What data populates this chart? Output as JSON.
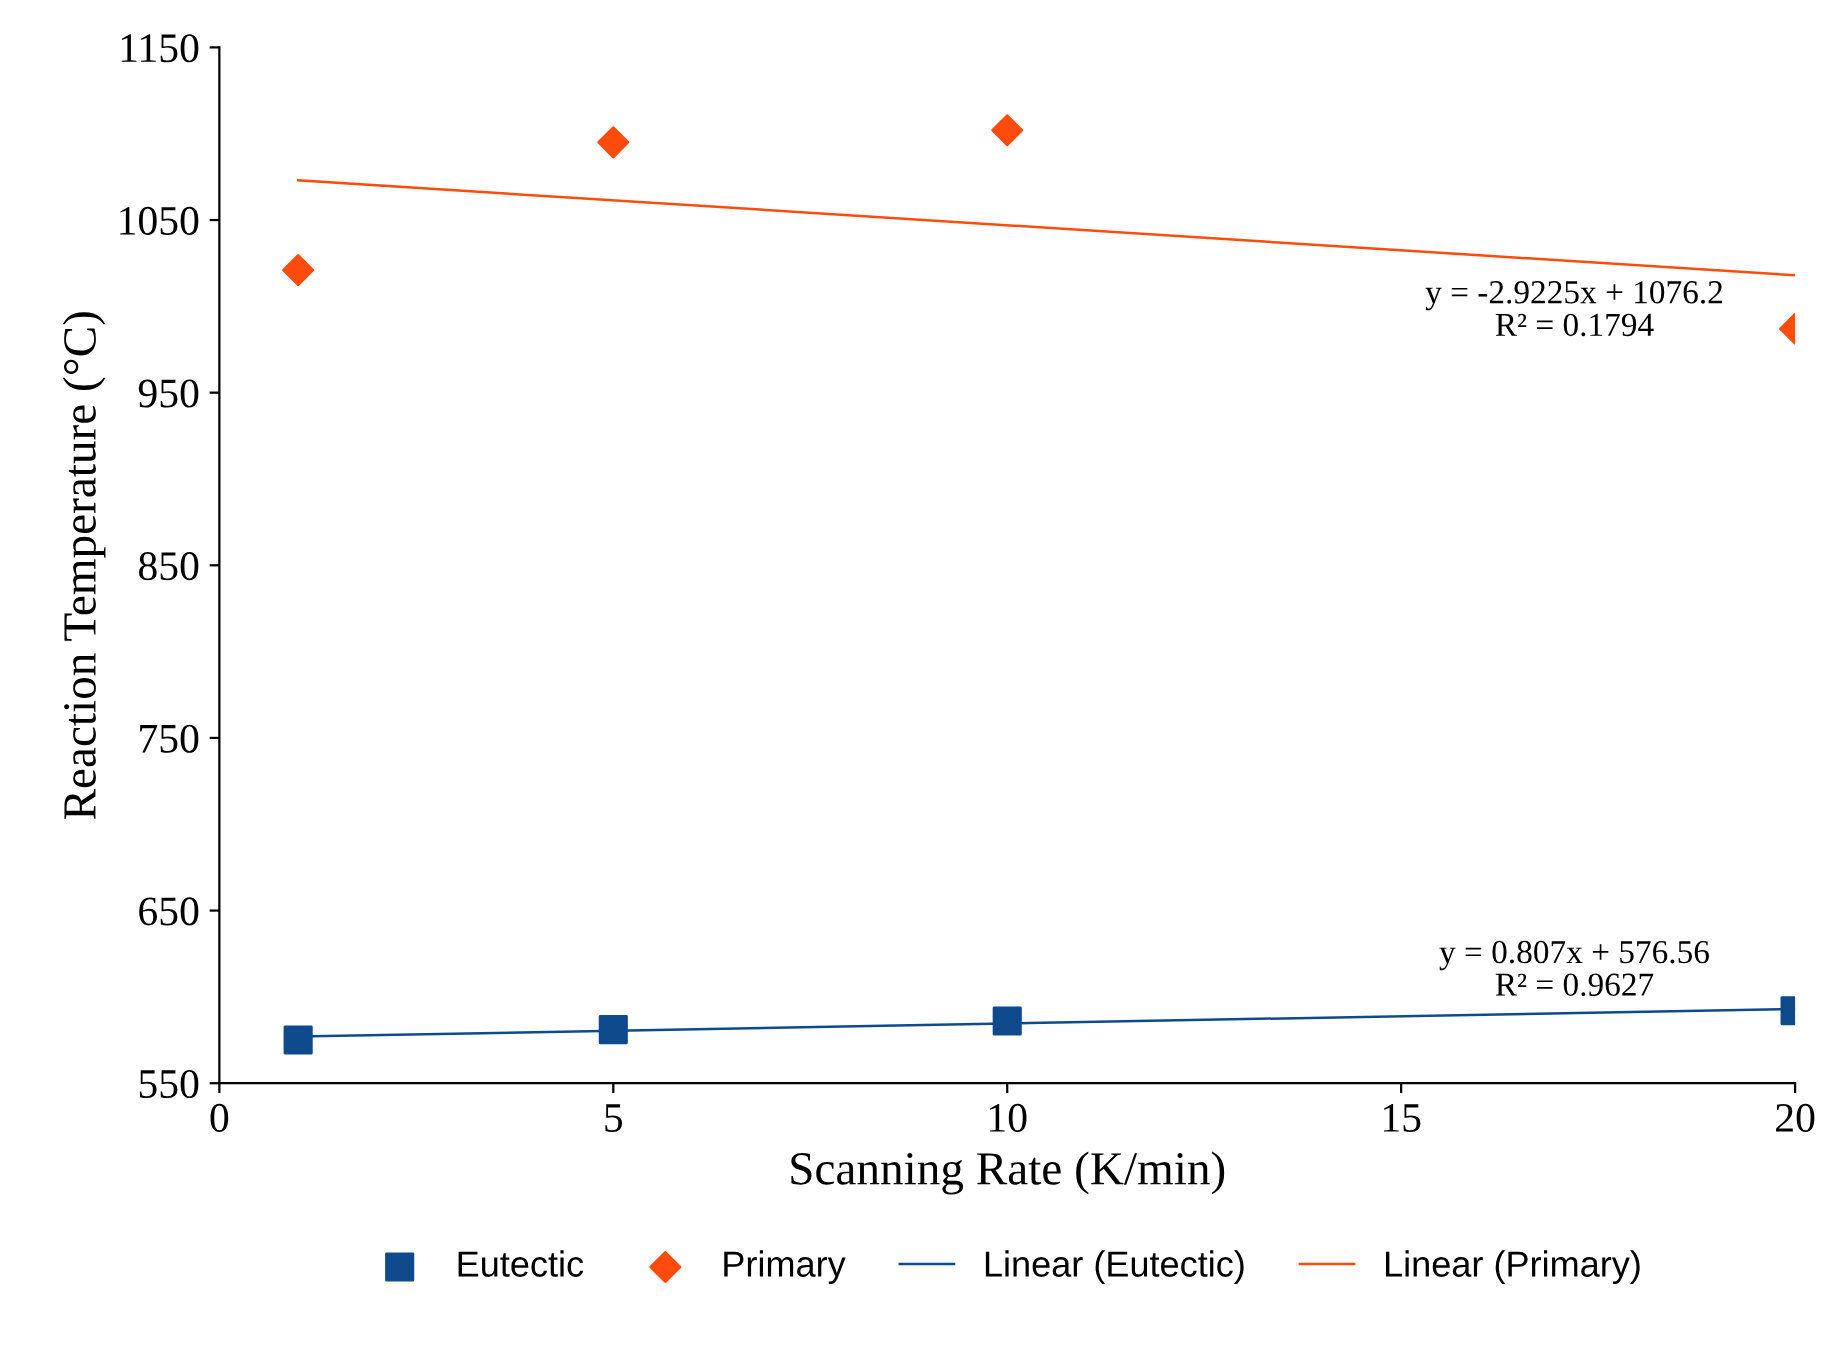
{
  "chart_data": {
    "type": "scatter",
    "xlabel": "Scanning Rate (K/min)",
    "ylabel": "Reaction Temperature (°C)",
    "xlim": [
      0,
      20
    ],
    "xticks": [
      0,
      5,
      10,
      15,
      20
    ],
    "ylim": [
      550,
      1150
    ],
    "yticks": [
      550,
      650,
      750,
      850,
      950,
      1050,
      1150
    ],
    "grid": false,
    "legend": "bottom",
    "series": [
      {
        "name": "Eutectic",
        "type": "scatter",
        "marker": "square",
        "color": "#0e4a8c",
        "x": [
          1,
          5,
          10,
          20
        ],
        "values": [
          575,
          581,
          586,
          592
        ]
      },
      {
        "name": "Primary",
        "type": "scatter",
        "marker": "diamond",
        "color": "#ff4c0c",
        "x": [
          1,
          5,
          10,
          20
        ],
        "values": [
          1021,
          1095,
          1102,
          987
        ]
      },
      {
        "name": "Linear (Eutectic)",
        "type": "line",
        "marker": "none",
        "color": "#0e4a8c",
        "x": [
          1,
          20
        ],
        "values": [
          577,
          593
        ]
      },
      {
        "name": "Linear (Primary)",
        "type": "line",
        "marker": "none",
        "color": "#ff4c0c",
        "x": [
          1,
          20
        ],
        "values": [
          1073,
          1018
        ]
      }
    ],
    "annotations": [
      "y = -2.9225x + 1076.2\nR² = 0.1794",
      "y = 0.807x + 576.56\nR² = 0.9627"
    ]
  }
}
